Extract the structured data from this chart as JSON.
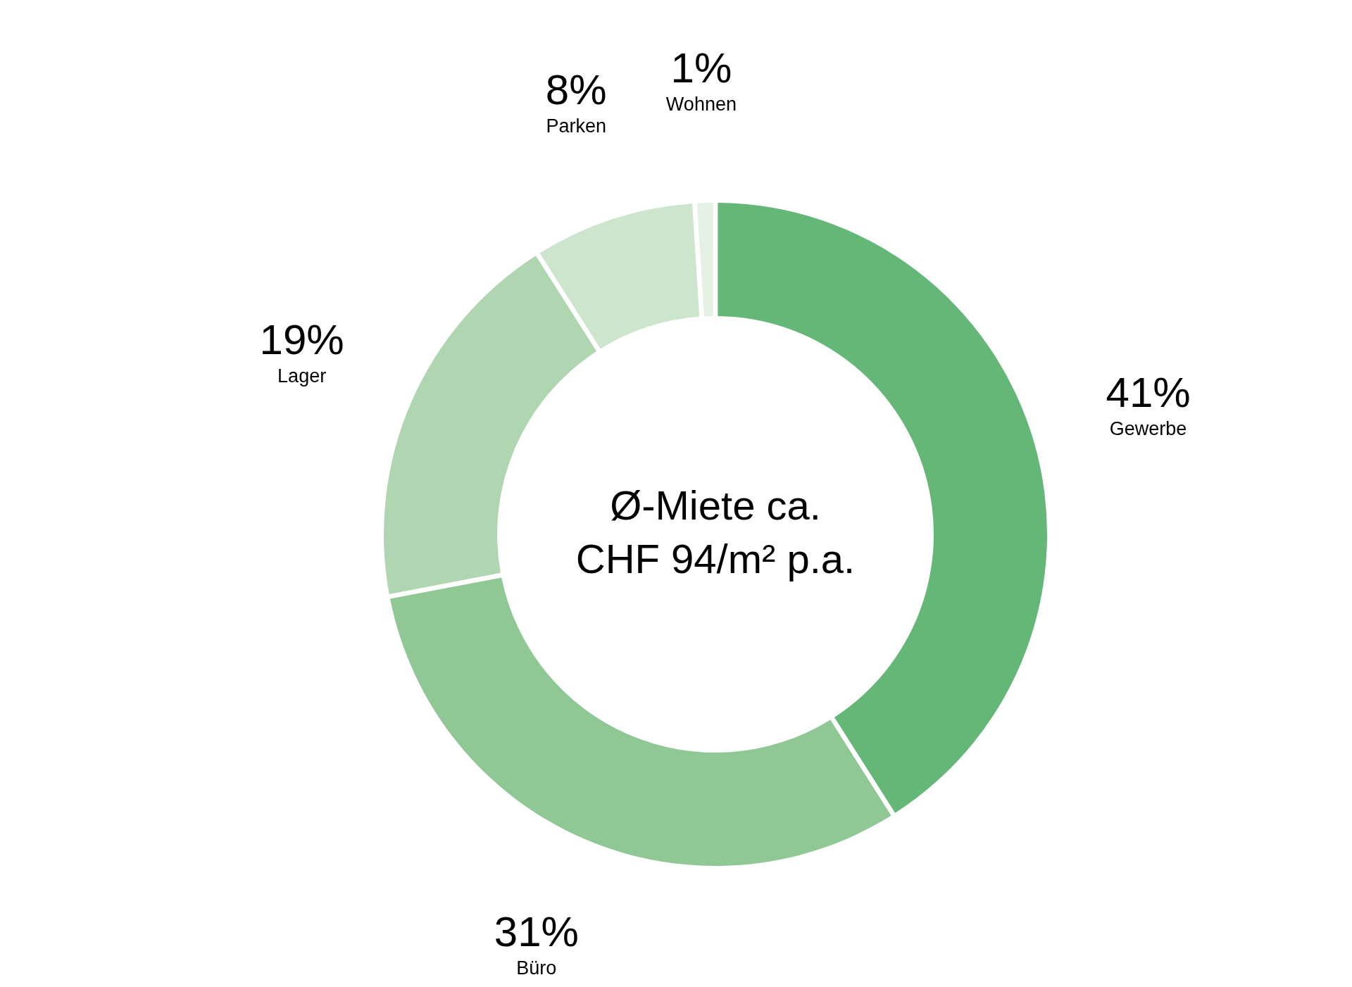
{
  "chart_data": {
    "type": "donut",
    "categories": [
      "Gewerbe",
      "Büro",
      "Lager",
      "Parken",
      "Wohnen"
    ],
    "values": [
      41,
      31,
      19,
      8,
      1
    ],
    "value_labels": [
      "41%",
      "31%",
      "19%",
      "8%",
      "1%"
    ],
    "colors": [
      "#64b776",
      "#8fc795",
      "#afd6b0",
      "#cde5cd",
      "#e4f1e4"
    ],
    "annotations": [
      "Ø-Miete ca.",
      "CHF 94/m² p.a."
    ]
  }
}
